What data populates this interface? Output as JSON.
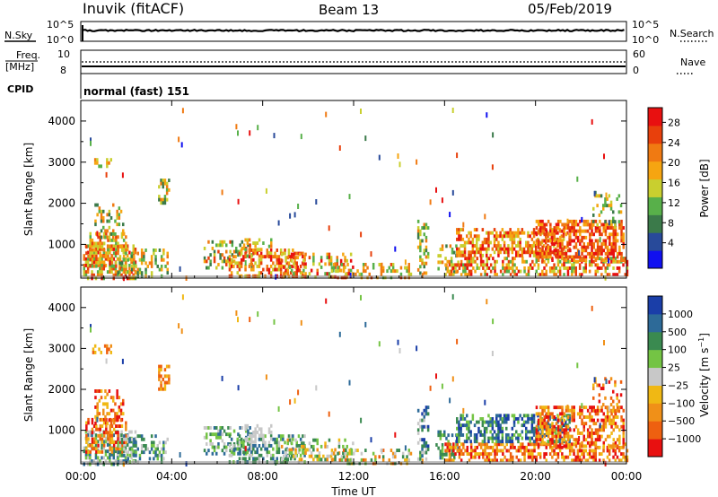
{
  "header": {
    "station": "Inuvik (fitACF)",
    "beam": "Beam 13",
    "date": "05/Feb/2019"
  },
  "top_panels": {
    "nsky_label": "N.Sky",
    "nsky_ticks": [
      "10^5",
      "10^0"
    ],
    "nsearch_label": "N.Search",
    "nsearch_ticks": [
      "10^5",
      "10^0"
    ],
    "freq_label_1": "Freq.",
    "freq_label_2": "[MHz]",
    "freq_ticks": [
      "10",
      "8"
    ],
    "nave_label": "Nave",
    "nave_ticks": [
      "60",
      "0"
    ],
    "cpid_label": "CPID",
    "cpid_value": "normal (fast) 151"
  },
  "colors": {
    "power_scale": [
      "#1010f0",
      "#284a9a",
      "#3b7a4a",
      "#58b04a",
      "#c9cf2f",
      "#f6a511",
      "#f07a12",
      "#e8400c",
      "#e81010"
    ],
    "velocity_scale": [
      "#1a3ea8",
      "#2d6a98",
      "#3a8a50",
      "#74c444",
      "#c8c8c8",
      "#f0b814",
      "#f09018",
      "#ee6010",
      "#e81010"
    ]
  },
  "chart_data": [
    {
      "type": "heatmap",
      "title": "Power",
      "xlabel": "",
      "ylabel": "Slant Range [km]",
      "x_ticks": [
        "00:00",
        "04:00",
        "08:00",
        "12:00",
        "16:00",
        "20:00",
        "00:00"
      ],
      "y_ticks": [
        "1000",
        "2000",
        "3000",
        "4000"
      ],
      "ylim": [
        180,
        4500
      ],
      "colorbar_label": "Power [dB]",
      "colorbar_ticks": [
        "4",
        "8",
        "12",
        "16",
        "20",
        "24",
        "28"
      ],
      "clim": [
        0,
        30
      ]
    },
    {
      "type": "heatmap",
      "title": "Velocity",
      "xlabel": "Time UT",
      "ylabel": "Slant Range [km]",
      "x_ticks": [
        "00:00",
        "04:00",
        "08:00",
        "12:00",
        "16:00",
        "20:00",
        "00:00"
      ],
      "y_ticks": [
        "1000",
        "2000",
        "3000",
        "4000"
      ],
      "ylim": [
        180,
        4500
      ],
      "colorbar_label": "Velocity [m s^-1]",
      "colorbar_ticks": [
        "1000",
        "500",
        "100",
        "25",
        "−25",
        "−100",
        "−500",
        "−1000"
      ],
      "clim": [
        -1000,
        1000
      ]
    }
  ]
}
